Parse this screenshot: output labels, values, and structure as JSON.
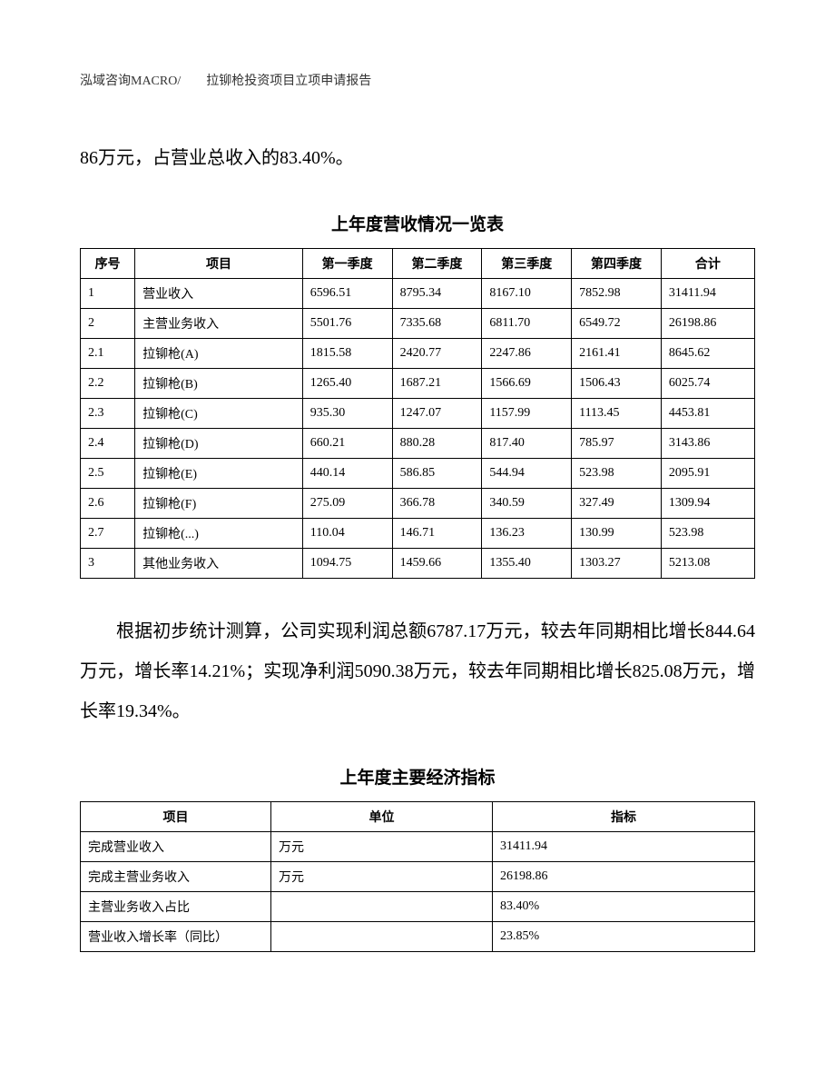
{
  "header": "泓域咨询MACRO/　　拉铆枪投资项目立项申请报告",
  "para1": "86万元，占营业总收入的83.40%。",
  "table1": {
    "title": "上年度营收情况一览表",
    "columns": [
      "序号",
      "项目",
      "第一季度",
      "第二季度",
      "第三季度",
      "第四季度",
      "合计"
    ],
    "rows": [
      [
        "1",
        "营业收入",
        "6596.51",
        "8795.34",
        "8167.10",
        "7852.98",
        "31411.94"
      ],
      [
        "2",
        "主营业务收入",
        "5501.76",
        "7335.68",
        "6811.70",
        "6549.72",
        "26198.86"
      ],
      [
        "2.1",
        "拉铆枪(A)",
        "1815.58",
        "2420.77",
        "2247.86",
        "2161.41",
        "8645.62"
      ],
      [
        "2.2",
        "拉铆枪(B)",
        "1265.40",
        "1687.21",
        "1566.69",
        "1506.43",
        "6025.74"
      ],
      [
        "2.3",
        "拉铆枪(C)",
        "935.30",
        "1247.07",
        "1157.99",
        "1113.45",
        "4453.81"
      ],
      [
        "2.4",
        "拉铆枪(D)",
        "660.21",
        "880.28",
        "817.40",
        "785.97",
        "3143.86"
      ],
      [
        "2.5",
        "拉铆枪(E)",
        "440.14",
        "586.85",
        "544.94",
        "523.98",
        "2095.91"
      ],
      [
        "2.6",
        "拉铆枪(F)",
        "275.09",
        "366.78",
        "340.59",
        "327.49",
        "1309.94"
      ],
      [
        "2.7",
        "拉铆枪(...)",
        "110.04",
        "146.71",
        "136.23",
        "130.99",
        "523.98"
      ],
      [
        "3",
        "其他业务收入",
        "1094.75",
        "1459.66",
        "1355.40",
        "1303.27",
        "5213.08"
      ]
    ]
  },
  "para2": "根据初步统计测算，公司实现利润总额6787.17万元，较去年同期相比增长844.64万元，增长率14.21%；实现净利润5090.38万元，较去年同期相比增长825.08万元，增长率19.34%。",
  "table2": {
    "title": "上年度主要经济指标",
    "columns": [
      "项目",
      "单位",
      "指标"
    ],
    "rows": [
      [
        "完成营业收入",
        "万元",
        "31411.94"
      ],
      [
        "完成主营业务收入",
        "万元",
        "26198.86"
      ],
      [
        "主营业务收入占比",
        "",
        "83.40%"
      ],
      [
        "营业收入增长率（同比）",
        "",
        "23.85%"
      ]
    ]
  }
}
